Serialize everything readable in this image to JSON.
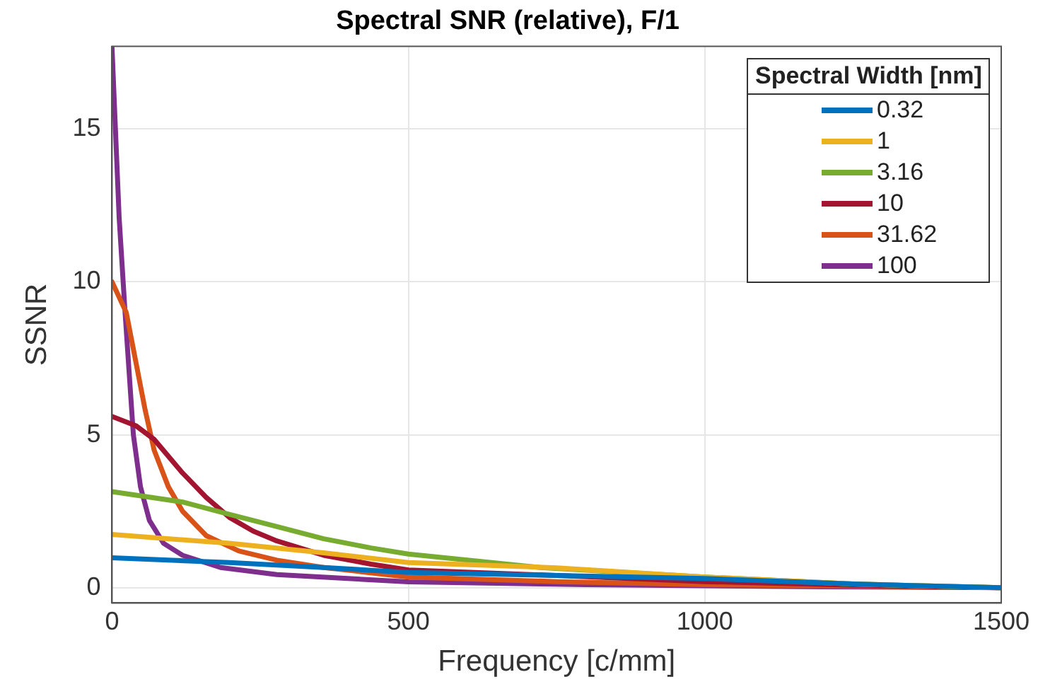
{
  "chart_data": {
    "type": "line",
    "title": "Spectral SNR (relative), F/1",
    "xlabel": "Frequency [c/mm]",
    "ylabel": "SSNR",
    "legend_title": "Spectral Width [nm]",
    "legend": "top right",
    "grid": true,
    "marker": "none",
    "line_style": "solid",
    "xlim": [
      0,
      1500
    ],
    "xticks": [
      0,
      500,
      1000,
      1500
    ],
    "ylim": [
      -0.5,
      17.7
    ],
    "yticks": [
      0,
      5,
      10,
      15
    ],
    "series": [
      {
        "name": "0.32",
        "color": "#0072bd",
        "x": [
          0,
          198,
          357,
          500,
          1000,
          1250,
          1500
        ],
        "values": [
          0.98,
          0.82,
          0.66,
          0.5,
          0.3,
          0.12,
          0
        ]
      },
      {
        "name": "1",
        "color": "#edb120",
        "x": [
          0,
          198,
          357,
          500,
          750,
          1000,
          1250,
          1500
        ],
        "values": [
          1.74,
          1.45,
          1.14,
          0.82,
          0.65,
          0.35,
          0.12,
          0
        ]
      },
      {
        "name": "3.16",
        "color": "#77ac30",
        "x": [
          0,
          119,
          198,
          278,
          357,
          437,
          500,
          722,
          1000,
          1250,
          1500
        ],
        "values": [
          3.14,
          2.8,
          2.4,
          2.0,
          1.6,
          1.3,
          1.1,
          0.66,
          0.35,
          0.12,
          0
        ]
      },
      {
        "name": "10",
        "color": "#a2142f",
        "x": [
          0,
          40,
          71,
          119,
          159,
          198,
          238,
          278,
          357,
          437,
          500,
          750,
          1000,
          1250,
          1500
        ],
        "values": [
          5.6,
          5.3,
          4.85,
          3.75,
          2.95,
          2.3,
          1.85,
          1.53,
          1.06,
          0.77,
          0.58,
          0.4,
          0.2,
          0.08,
          0
        ]
      },
      {
        "name": "31.62",
        "color": "#d95319",
        "x": [
          0,
          24,
          40,
          56,
          71,
          95,
          119,
          159,
          214,
          278,
          357,
          500,
          750,
          1000,
          1500
        ],
        "values": [
          10,
          9.0,
          7.4,
          5.8,
          4.5,
          3.3,
          2.5,
          1.7,
          1.2,
          0.9,
          0.66,
          0.35,
          0.2,
          0.1,
          0
        ]
      },
      {
        "name": "100",
        "color": "#7e2f8e",
        "x": [
          0,
          12,
          22,
          36,
          48,
          63,
          87,
          119,
          183,
          278,
          500,
          800,
          1200,
          1500
        ],
        "values": [
          17.65,
          12.1,
          9.0,
          5.0,
          3.3,
          2.2,
          1.45,
          1.06,
          0.66,
          0.43,
          0.19,
          0.1,
          0.03,
          0
        ]
      }
    ]
  }
}
